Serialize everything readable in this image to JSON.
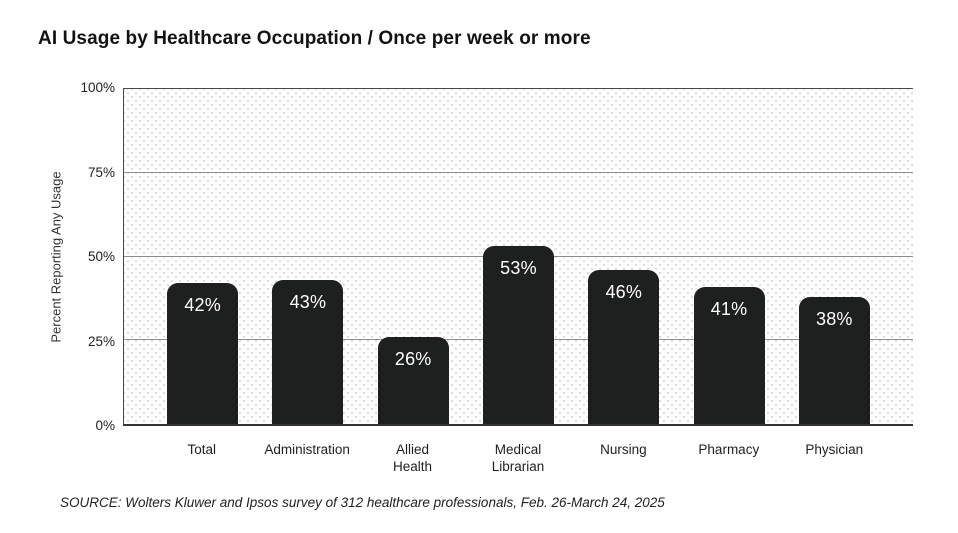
{
  "title": "AI Usage by Healthcare Occupation / Once per week or more",
  "source_note": "SOURCE: Wolters Kluwer and Ipsos survey of 312 healthcare professionals, Feb. 26-March 24, 2025",
  "chart_data": {
    "type": "bar",
    "title": "AI Usage by Healthcare Occupation / Once per week or more",
    "categories": [
      "Total",
      "Administration",
      "Allied\nHealth",
      "Medical\nLibrarian",
      "Nursing",
      "Pharmacy",
      "Physician"
    ],
    "values": [
      42,
      43,
      26,
      53,
      46,
      41,
      38
    ],
    "value_labels": [
      "42%",
      "43%",
      "26%",
      "53%",
      "46%",
      "41%",
      "38%"
    ],
    "xlabel": "",
    "ylabel": "Percent Reporting Any Usage",
    "ylim": [
      0,
      100
    ],
    "yticks": [
      0,
      25,
      50,
      75,
      100
    ],
    "ytick_labels": [
      "0%",
      "25%",
      "50%",
      "75%",
      "100%"
    ],
    "grid": "horizontal",
    "legend": "none",
    "annotation": "SOURCE: Wolters Kluwer and Ipsos survey of 312 healthcare professionals, Feb. 26-March 24, 2025"
  },
  "colors": {
    "bar": "#1e1f1f",
    "bar_label": "#ffffff",
    "gridline": "#8f8f8f",
    "axis_border": "#4a4a4a",
    "dot_pattern": "#d9d9d9",
    "title_text": "#121212",
    "tick_text": "#222222"
  }
}
